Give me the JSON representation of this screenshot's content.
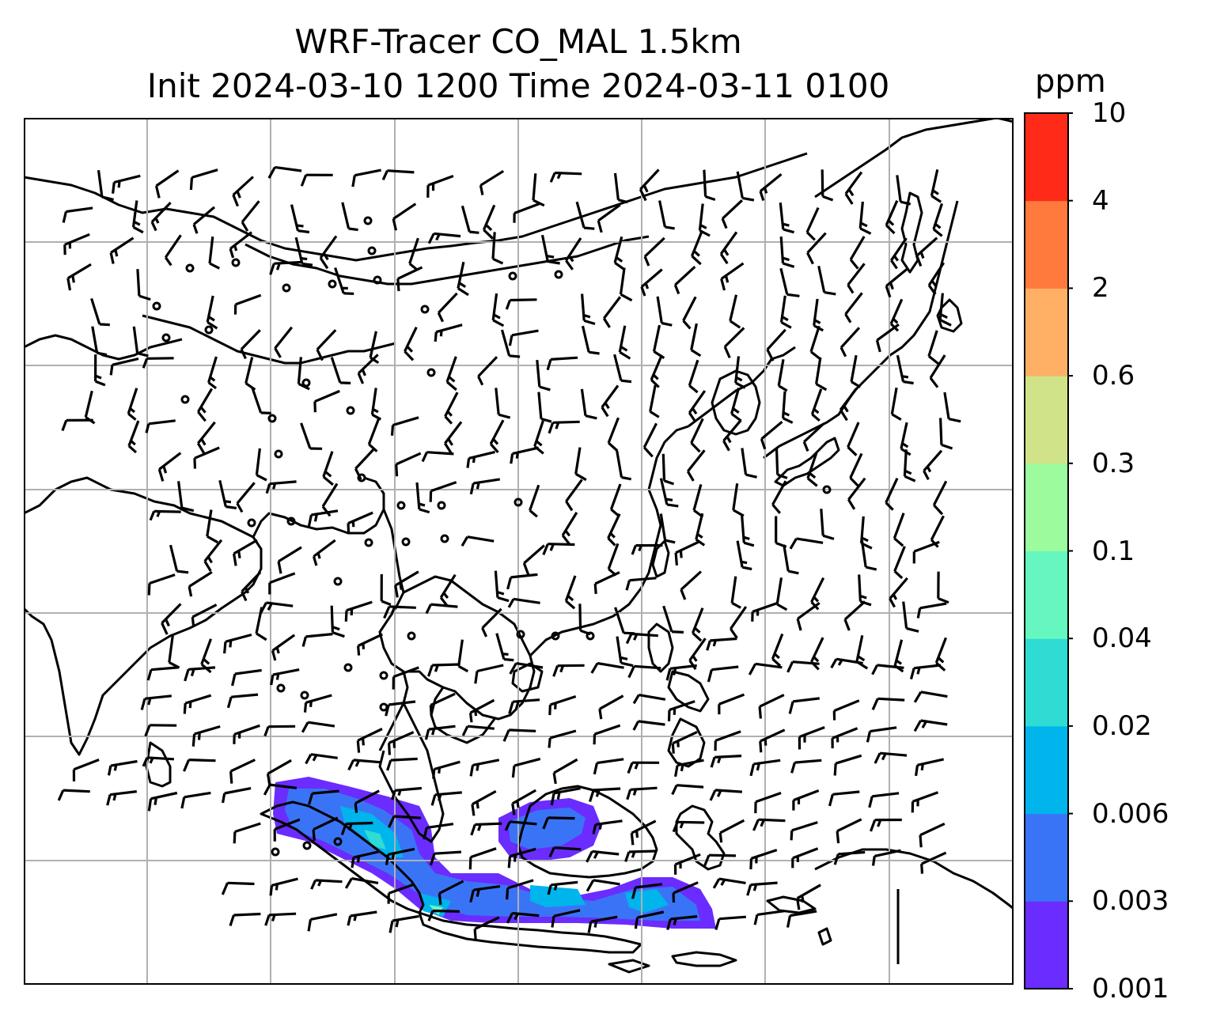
{
  "title": {
    "line1": "WRF-Tracer CO_MAL 1.5km",
    "line2": "Init 2024-03-10 1200 Time 2024-03-11 0100"
  },
  "colorbar": {
    "unit": "ppm",
    "ticks": [
      "0.001",
      "0.003",
      "0.006",
      "0.02",
      "0.04",
      "0.1",
      "0.3",
      "0.6",
      "2",
      "4",
      "10"
    ],
    "colors": [
      "#6a2cff",
      "#3a74f6",
      "#00b4ec",
      "#2fdcd4",
      "#66f7c0",
      "#9cfb9c",
      "#d0e388",
      "#ffb064",
      "#ff7a3c",
      "#ff2b18"
    ]
  },
  "map": {
    "coastline_color": "#000000",
    "grid_color": "#b0b0b0",
    "legend": "barbs and calm circles"
  }
}
